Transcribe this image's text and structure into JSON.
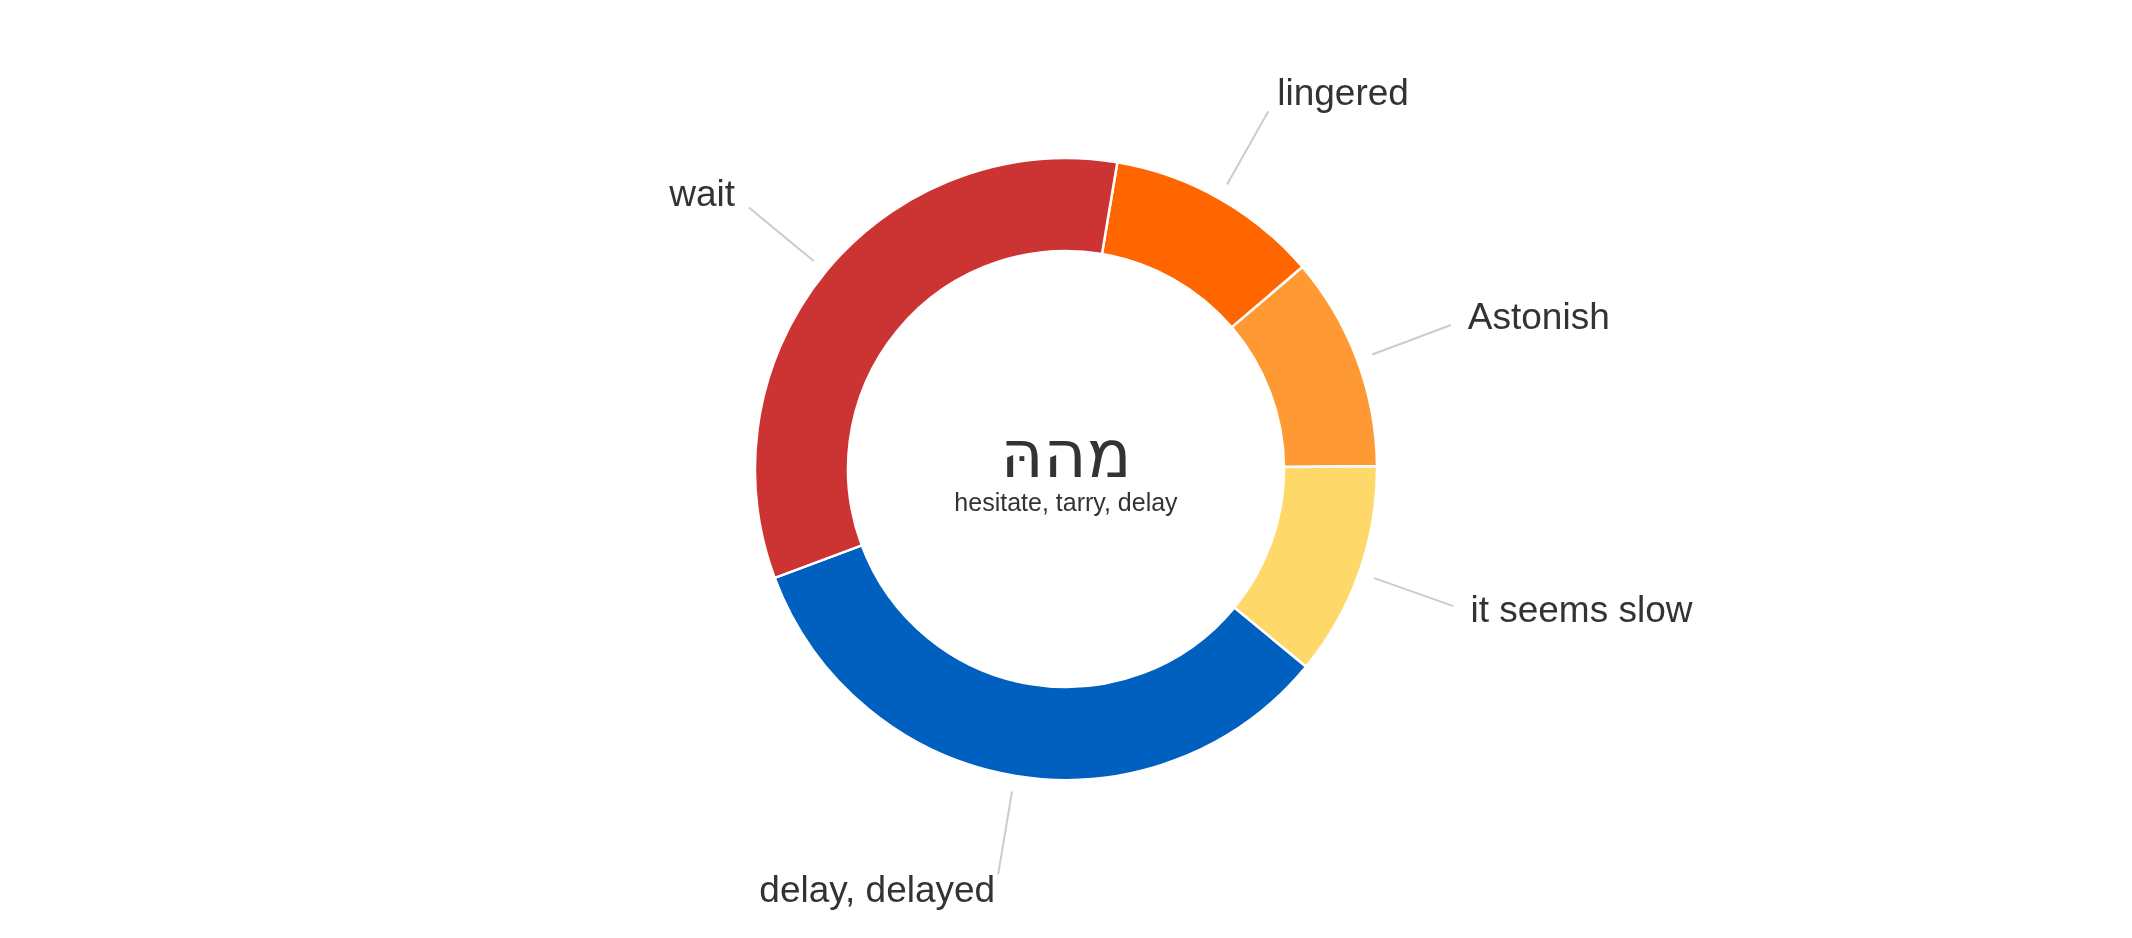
{
  "chart_data": {
    "type": "donut",
    "title": "מההּ",
    "subtitle": "hesitate, tarry, delay",
    "categories": [
      "lingered",
      "Astonish",
      "it seems slow",
      "delay, delayed",
      "wait"
    ],
    "values": [
      11.11,
      11.11,
      11.11,
      33.34,
      33.33
    ],
    "colors": [
      "#ff6600",
      "#ff9933",
      "#ffd86a",
      "#0060c0",
      "#cc3333"
    ]
  }
}
